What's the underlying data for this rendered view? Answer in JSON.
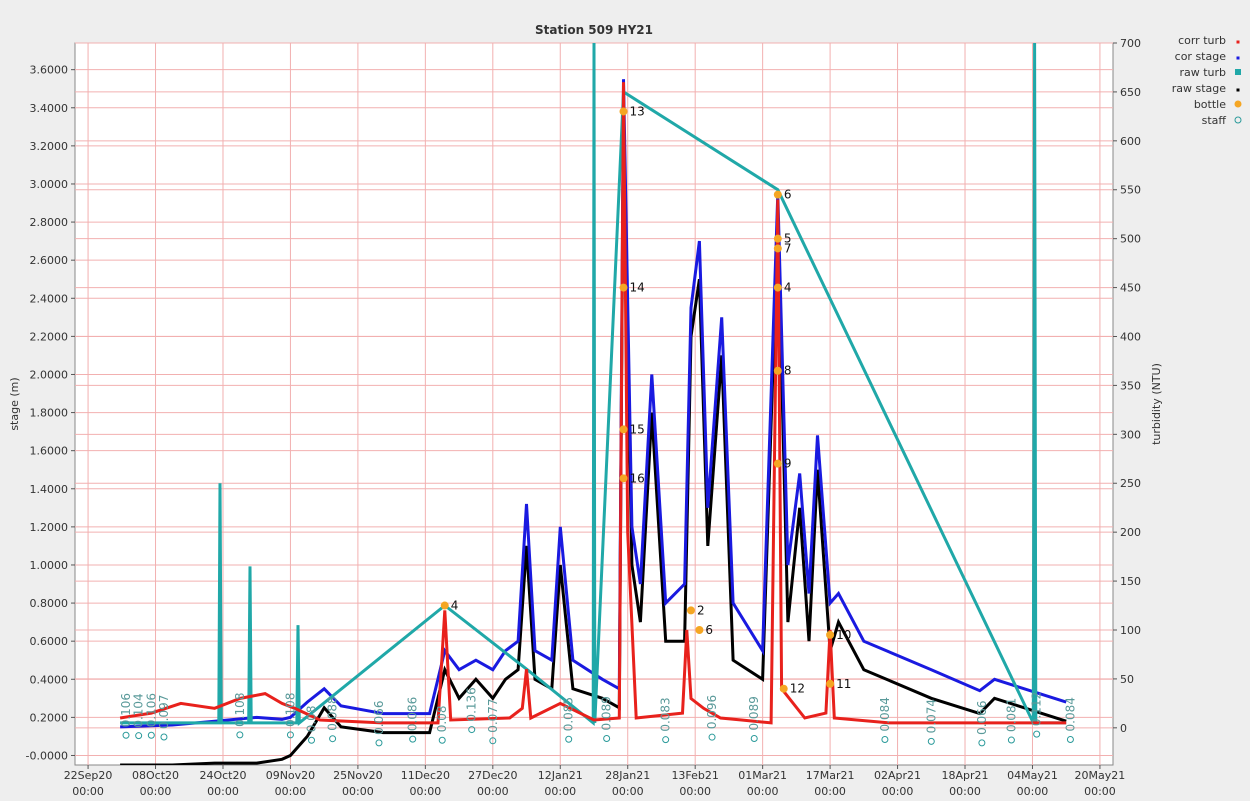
{
  "chart_data": {
    "type": "line",
    "title": "Station 509 HY21",
    "y_label": "stage (m)",
    "y2_label": "turbidity (NTU)",
    "xlim": [
      -3.1,
      243.1
    ],
    "xticks": [
      {
        "value": 0,
        "label": "22Sep20"
      },
      {
        "value": 16,
        "label": "08Oct20"
      },
      {
        "value": 32,
        "label": "24Oct20"
      },
      {
        "value": 48,
        "label": "09Nov20"
      },
      {
        "value": 64,
        "label": "25Nov20"
      },
      {
        "value": 80,
        "label": "11Dec20"
      },
      {
        "value": 96,
        "label": "27Dec20"
      },
      {
        "value": 112,
        "label": "12Jan21"
      },
      {
        "value": 128,
        "label": "28Jan21"
      },
      {
        "value": 144,
        "label": "13Feb21"
      },
      {
        "value": 160,
        "label": "01Mar21"
      },
      {
        "value": 176,
        "label": "17Mar21"
      },
      {
        "value": 192,
        "label": "02Apr21"
      },
      {
        "value": 208,
        "label": "18Apr21"
      },
      {
        "value": 224,
        "label": "04May21"
      },
      {
        "value": 240,
        "label": "20May21"
      }
    ],
    "xtick_sublabels": [
      "00:00",
      "00:00",
      "00:00",
      "00:00",
      "00:00",
      "00:00",
      "00:00",
      "00:00",
      "00:00",
      "00:00",
      "00:00",
      "00:00",
      "00:00",
      "00:00",
      "00:00",
      "00:00"
    ],
    "ylim": [
      -0.05,
      3.74
    ],
    "yticks": [
      {
        "value": 0,
        "label": "-0.0000"
      },
      {
        "value": 0.2,
        "label": "0.2000"
      },
      {
        "value": 0.4,
        "label": "0.4000"
      },
      {
        "value": 0.6,
        "label": "0.6000"
      },
      {
        "value": 0.8,
        "label": "0.8000"
      },
      {
        "value": 1.0,
        "label": "1.0000"
      },
      {
        "value": 1.2,
        "label": "1.2000"
      },
      {
        "value": 1.4,
        "label": "1.4000"
      },
      {
        "value": 1.6,
        "label": "1.6000"
      },
      {
        "value": 1.8,
        "label": "1.8000"
      },
      {
        "value": 2.0,
        "label": "2.0000"
      },
      {
        "value": 2.2,
        "label": "2.2000"
      },
      {
        "value": 2.4,
        "label": "2.4000"
      },
      {
        "value": 2.6,
        "label": "2.6000"
      },
      {
        "value": 2.8,
        "label": "2.8000"
      },
      {
        "value": 3.0,
        "label": "3.0000"
      },
      {
        "value": 3.2,
        "label": "3.2000"
      },
      {
        "value": 3.4,
        "label": "3.4000"
      },
      {
        "value": 3.6,
        "label": "3.6000"
      }
    ],
    "y2lim": [
      -38,
      700
    ],
    "y2ticks": [
      0,
      50,
      100,
      150,
      200,
      250,
      300,
      350,
      400,
      450,
      500,
      550,
      600,
      650,
      700
    ],
    "grid": true,
    "legend": "right",
    "series": [
      {
        "name": "corr turb",
        "color": "#e8211c",
        "axis": "y2",
        "style": "line",
        "x": [
          7.6,
          15,
          22,
          30,
          36,
          42,
          46,
          49,
          55,
          70,
          83,
          84.6,
          86,
          100,
          103,
          104,
          105,
          112,
          120,
          126,
          127,
          128,
          130,
          141,
          142,
          143,
          146,
          150,
          155,
          162,
          163.6,
          164.5,
          170,
          175,
          176,
          177,
          190,
          210,
          232
        ],
        "values": [
          10,
          15,
          25,
          20,
          30,
          35,
          25,
          20,
          8,
          5,
          5,
          120,
          8,
          10,
          20,
          60,
          10,
          25,
          8,
          10,
          660,
          200,
          10,
          15,
          100,
          30,
          20,
          10,
          8,
          5,
          540,
          40,
          10,
          15,
          100,
          10,
          5,
          5,
          5
        ]
      },
      {
        "name": "cor stage",
        "color": "#1a1ae0",
        "axis": "y",
        "style": "line",
        "x": [
          7.6,
          20,
          30,
          40,
          46,
          48,
          52,
          56,
          60,
          70,
          81,
          84.6,
          88,
          92,
          96,
          99,
          102,
          104,
          106,
          110,
          112,
          115,
          122,
          126,
          127,
          129,
          131,
          133.7,
          137,
          141.5,
          143,
          145,
          147,
          150.3,
          153,
          160,
          163.6,
          166,
          168.8,
          171,
          173,
          176,
          178,
          184,
          200,
          211.5,
          215,
          232
        ],
        "values": [
          0.15,
          0.16,
          0.18,
          0.2,
          0.19,
          0.2,
          0.28,
          0.35,
          0.26,
          0.22,
          0.22,
          0.55,
          0.45,
          0.5,
          0.45,
          0.55,
          0.6,
          1.32,
          0.55,
          0.5,
          1.2,
          0.5,
          0.4,
          0.35,
          3.55,
          1.2,
          0.9,
          2.0,
          0.8,
          0.9,
          2.35,
          2.7,
          1.3,
          2.3,
          0.8,
          0.55,
          2.95,
          1.0,
          1.48,
          0.85,
          1.68,
          0.8,
          0.85,
          0.6,
          0.45,
          0.34,
          0.4,
          0.28
        ]
      },
      {
        "name": "raw turb",
        "color": "#20a8a8",
        "axis": "y2",
        "style": "line",
        "x": [
          7.6,
          31,
          31.3,
          31.6,
          38.1,
          38.4,
          38.7,
          49.5,
          49.8,
          50.1,
          84.6,
          104,
          119.8,
          120,
          120.2,
          127,
          163.6,
          224.2,
          224.5,
          224.8,
          232
        ],
        "values": [
          5,
          5,
          250,
          5,
          5,
          165,
          5,
          5,
          105,
          5,
          125,
          60,
          5,
          700,
          5,
          650,
          550,
          5,
          700,
          5,
          5
        ]
      },
      {
        "name": "raw stage",
        "color": "#000000",
        "axis": "y",
        "style": "line",
        "x": [
          7.6,
          20,
          30,
          40,
          46,
          48,
          52,
          56,
          60,
          70,
          81,
          84.6,
          88,
          92,
          96,
          99,
          102,
          104,
          106,
          110,
          112,
          115,
          122,
          126,
          127,
          129,
          131,
          133.7,
          137,
          141.5,
          143,
          145,
          147,
          150.3,
          153,
          160,
          163.6,
          166,
          168.8,
          171,
          173,
          176,
          178,
          184,
          200,
          211.5,
          215,
          232
        ],
        "values": [
          -0.05,
          -0.05,
          -0.04,
          -0.04,
          -0.02,
          0.0,
          0.1,
          0.25,
          0.15,
          0.12,
          0.12,
          0.45,
          0.3,
          0.4,
          0.3,
          0.4,
          0.45,
          1.1,
          0.4,
          0.35,
          1.0,
          0.35,
          0.3,
          0.25,
          3.4,
          1.0,
          0.7,
          1.8,
          0.6,
          0.6,
          2.2,
          2.5,
          1.1,
          2.1,
          0.5,
          0.4,
          2.8,
          0.7,
          1.3,
          0.6,
          1.5,
          0.55,
          0.7,
          0.45,
          0.3,
          0.22,
          0.3,
          0.18
        ]
      },
      {
        "name": "bottle",
        "color": "#f5a623",
        "axis": "y2",
        "style": "dots",
        "x": [
          84.6,
          127,
          127,
          127,
          127,
          163.6,
          163.6,
          163.6,
          163.6,
          163.6,
          163.6,
          165,
          176,
          176,
          143,
          145
        ],
        "values": [
          125,
          630,
          450,
          305,
          255,
          545,
          500,
          490,
          450,
          365,
          270,
          40,
          95,
          45,
          120,
          100
        ],
        "labels": [
          "4",
          "13",
          "14",
          "15",
          "16",
          "6",
          "5",
          "7",
          "4",
          "8",
          "9",
          "12",
          "10",
          "11",
          "2",
          "6"
        ]
      },
      {
        "name": "staff",
        "color": "#2a9a9a",
        "axis": "y",
        "style": "circles",
        "x": [
          9,
          12,
          15,
          18,
          36,
          48,
          53,
          58,
          69,
          77,
          84,
          91,
          96,
          114,
          123,
          137,
          148,
          158,
          189,
          200,
          212,
          219,
          225,
          233
        ],
        "values": [
          0.106,
          0.104,
          0.106,
          0.097,
          0.108,
          0.108,
          0.08,
          0.088,
          0.066,
          0.086,
          0.08,
          0.136,
          0.077,
          0.085,
          0.089,
          0.083,
          0.096,
          0.089,
          0.084,
          0.074,
          0.066,
          0.081,
          0.112,
          0.084
        ]
      }
    ]
  }
}
